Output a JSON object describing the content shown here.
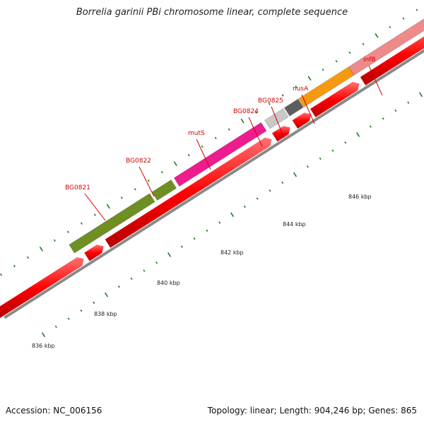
{
  "title": "Borrelia garinii PBi chromosome linear, complete sequence",
  "footer": {
    "accession": "Accession: NC_006156",
    "info": "Topology: linear; Length: 904,246 bp; Genes: 865"
  },
  "colors": {
    "cds": "#ff0000",
    "backbone": "#8a8a8a",
    "tick": "#1e7d1e",
    "label": "#d40000"
  },
  "scale_labels": [
    "836 kbp",
    "838 kbp",
    "840 kbp",
    "842 kbp",
    "844 kbp",
    "846 kbp"
  ],
  "genes": [
    {
      "name": "BG0821",
      "color": "#6f8f22"
    },
    {
      "name": "BG0822",
      "color": "#6f8f22"
    },
    {
      "name": "mutS",
      "color": "#ef1c8f"
    },
    {
      "name": "BG0824",
      "color": "#c8c8c8"
    },
    {
      "name": "BG0825",
      "color": "#5e5e5e"
    },
    {
      "name": "nusA",
      "color": "#f59a10"
    },
    {
      "name": "infB",
      "color": "#ef8a8a"
    }
  ]
}
